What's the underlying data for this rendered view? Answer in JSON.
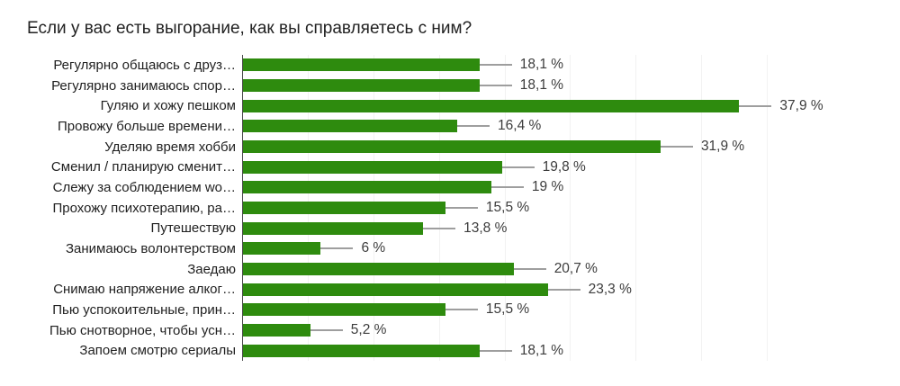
{
  "title": "Если у вас есть выгорание, как вы справляетесь с ним?",
  "colors": {
    "background": "#ffffff",
    "bar": "#2e8b0e",
    "leader_line": "#9e9e9e",
    "gridline": "#f2f2f2",
    "baseline": "#4a4a4a",
    "title_text": "#212121",
    "category_text": "#1f1f1f",
    "value_text": "#3c3c3c"
  },
  "chart_data": {
    "type": "bar",
    "orientation": "horizontal",
    "title": "Если у вас есть выгорание, как вы справляетесь с ним?",
    "categories": [
      "Регулярно общаюсь с друз…",
      "Регулярно занимаюсь спор…",
      "Гуляю и хожу пешком",
      "Провожу больше времени…",
      "Уделяю время хобби",
      "Сменил / планирую сменит…",
      "Слежу за соблюдением wo…",
      "Прохожу психотерапию, ра…",
      "Путешествую",
      "Занимаюсь волонтерством",
      "Заедаю",
      "Снимаю напряжение алког…",
      "Пью успокоительные, прин…",
      "Пью снотворное, чтобы усн…",
      "Запоем смотрю сериалы"
    ],
    "values": [
      18.1,
      18.1,
      37.9,
      16.4,
      31.9,
      19.8,
      19,
      15.5,
      13.8,
      6,
      20.7,
      23.3,
      15.5,
      5.2,
      18.1
    ],
    "value_labels": [
      "18,1 %",
      "18,1 %",
      "37,9 %",
      "16,4 %",
      "31,9 %",
      "19,8 %",
      "19 %",
      "15,5 %",
      "13,8 %",
      "6 %",
      "20,7 %",
      "23,3 %",
      "15,5 %",
      "5,2 %",
      "18,1 %"
    ],
    "xlabel": "",
    "ylabel": "",
    "xlim": [
      0,
      40
    ],
    "gridline_step": 5,
    "grid": "vertical-light",
    "legend": "none",
    "data_label_format": "comma-decimal with space before %"
  }
}
